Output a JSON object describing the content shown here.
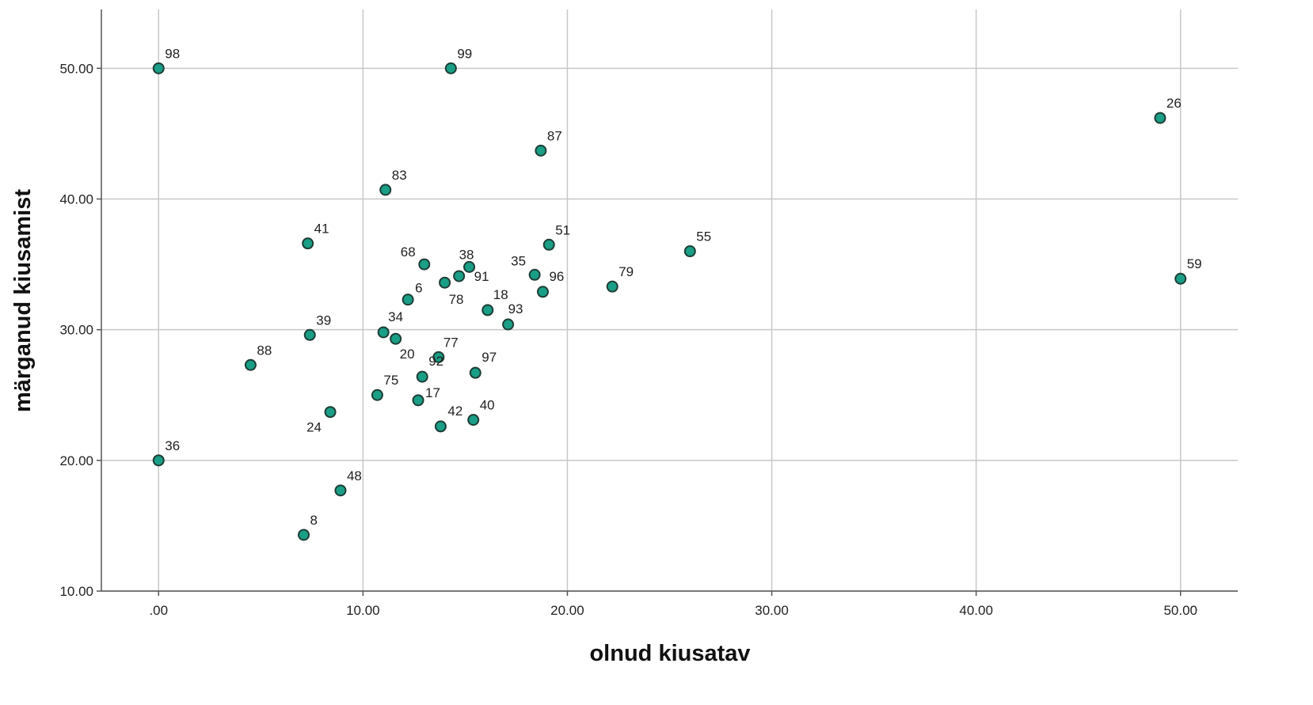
{
  "chart_data": {
    "type": "scatter",
    "xlabel": "olnud kiusatav",
    "ylabel": "märganud kiusamist",
    "xlim": [
      -2.8,
      52.8
    ],
    "ylim": [
      10,
      54.5
    ],
    "x_ticks": [
      0,
      10,
      20,
      30,
      40,
      50
    ],
    "y_ticks": [
      10,
      20,
      30,
      40,
      50
    ],
    "x_tick_labels": [
      ".00",
      "10.00",
      "20.00",
      "30.00",
      "40.00",
      "50.00"
    ],
    "y_tick_labels": [
      "10.00",
      "20.00",
      "30.00",
      "40.00",
      "50.00"
    ],
    "grid": true,
    "marker_color": "#1a9e86",
    "marker_edge_color": "#1e3d36",
    "points": [
      {
        "label": "98",
        "x": 0.0,
        "y": 50.0
      },
      {
        "label": "99",
        "x": 14.3,
        "y": 50.0
      },
      {
        "label": "26",
        "x": 49.0,
        "y": 46.2
      },
      {
        "label": "87",
        "x": 18.7,
        "y": 43.7
      },
      {
        "label": "83",
        "x": 11.1,
        "y": 40.7
      },
      {
        "label": "41",
        "x": 7.3,
        "y": 36.6
      },
      {
        "label": "51",
        "x": 19.1,
        "y": 36.5
      },
      {
        "label": "55",
        "x": 26.0,
        "y": 36.0
      },
      {
        "label": "68",
        "x": 13.0,
        "y": 35.0
      },
      {
        "label": "38",
        "x": 15.2,
        "y": 34.8
      },
      {
        "label": "35",
        "x": 18.4,
        "y": 34.2
      },
      {
        "label": "91",
        "x": 14.7,
        "y": 34.1
      },
      {
        "label": "59",
        "x": 50.0,
        "y": 33.9
      },
      {
        "label": "78",
        "x": 14.0,
        "y": 33.6
      },
      {
        "label": "79",
        "x": 22.2,
        "y": 33.3
      },
      {
        "label": "96",
        "x": 18.8,
        "y": 32.9
      },
      {
        "label": "6",
        "x": 12.2,
        "y": 32.3
      },
      {
        "label": "18",
        "x": 16.1,
        "y": 31.5
      },
      {
        "label": "93",
        "x": 17.1,
        "y": 30.4
      },
      {
        "label": "34",
        "x": 11.0,
        "y": 29.8
      },
      {
        "label": "39",
        "x": 7.4,
        "y": 29.6
      },
      {
        "label": "20",
        "x": 11.6,
        "y": 29.3
      },
      {
        "label": "77",
        "x": 13.7,
        "y": 27.9
      },
      {
        "label": "88",
        "x": 4.5,
        "y": 27.3
      },
      {
        "label": "97",
        "x": 15.5,
        "y": 26.7
      },
      {
        "label": "92",
        "x": 12.9,
        "y": 26.4
      },
      {
        "label": "75",
        "x": 10.7,
        "y": 25.0
      },
      {
        "label": "17",
        "x": 12.7,
        "y": 24.6
      },
      {
        "label": "24",
        "x": 8.4,
        "y": 23.7
      },
      {
        "label": "40",
        "x": 15.4,
        "y": 23.1
      },
      {
        "label": "42",
        "x": 13.8,
        "y": 22.6
      },
      {
        "label": "36",
        "x": 0.0,
        "y": 20.0
      },
      {
        "label": "48",
        "x": 8.9,
        "y": 17.7
      },
      {
        "label": "8",
        "x": 7.1,
        "y": 14.3
      }
    ]
  }
}
